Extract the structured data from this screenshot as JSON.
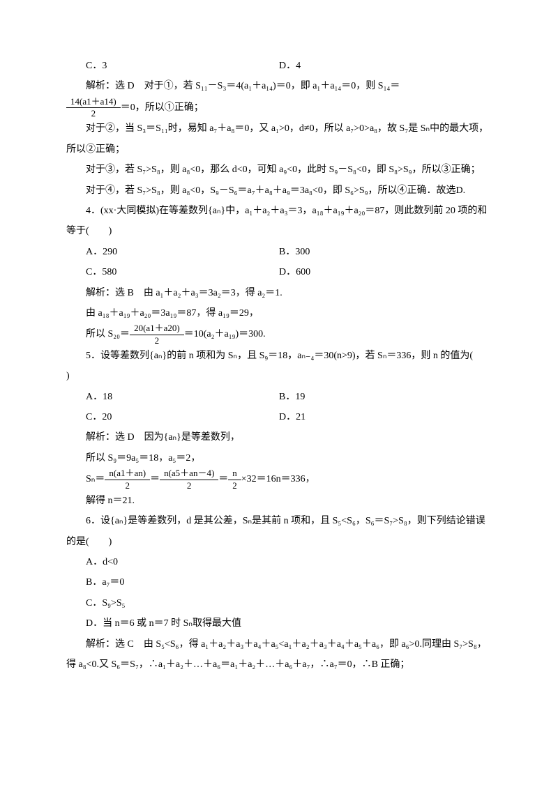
{
  "colors": {
    "text": "#000000",
    "bg": "#ffffff"
  },
  "font": {
    "family": "SimSun",
    "size_pt": 10.5,
    "line_height": 2.1
  },
  "lines": {
    "optC1": "C．3",
    "optD1": "D．4",
    "exp1a": "解析：选 D　对于①，若 S₁₁－S₃＝4(a₁＋a₁₄)＝0，即 a₁＋a₁₄＝0，则 S₁₄＝",
    "frac1_num": "14(a1＋a14)",
    "frac1_den": "2",
    "exp1b": "＝0，所以①正确；",
    "exp2": "对于②，当 S₃＝S₁₁时，易知 a₇＋a₈＝0，又 a₁>0，d≠0，所以 a₇>0>a₈，故 S₇是 Sₙ中的最大项，所以②正确；",
    "exp3": "对于③，若 S₇>S₈，则 a₈<0，那么 d<0，可知 a₉<0，此时 S₉－S₈<0，即 S₈>S₉，所以③正确；",
    "exp4": "对于④，若 S₇>S₈，则 a₈<0，S₉－S₆＝a₇＋a₈＋a₉＝3a₈<0，即 S₆>S₉，所以④正确．故选D.",
    "q4": "4．(xx·大同模拟)在等差数列{aₙ}中，a₁＋a₂＋a₃＝3，a₁₈＋a₁₉＋a₂₀＝87，则此数列前 20 项的和等于(　　)",
    "q4A": "A．290",
    "q4B": "B．300",
    "q4C": "C．580",
    "q4D": "D．600",
    "q4exp1": "解析：选 B　由 a₁＋a₂＋a₃＝3a₂＝3，得 a₂＝1.",
    "q4exp2": "由 a₁₈＋a₁₉＋a₂₀＝3a₁₉＝87，得 a₁₉＝29，",
    "q4exp3a": "所以 S₂₀＝",
    "q4frac_num": "20(a1＋a20)",
    "q4frac_den": "2",
    "q4exp3b": "＝10(a₂＋a₁₉)＝300.",
    "q5": "5．设等差数列{aₙ}的前 n 项和为 Sₙ，且 S₉＝18，aₙ₋₄＝30(n>9)，若 Sₙ＝336，则 n 的值为(　　)",
    "q5A": "A．18",
    "q5B": "B．19",
    "q5C": "C．20",
    "q5D": "D．21",
    "q5exp1": "解析：选 D　因为{aₙ}是等差数列，",
    "q5exp2": "所以 S₉＝9a₅＝18，a₅＝2，",
    "q5exp3a": "Sₙ＝",
    "q5f1n": "n(a1＋an)",
    "q5f1d": "2",
    "q5eq1": "＝",
    "q5f2n": "n(a5＋an－4)",
    "q5f2d": "2",
    "q5eq2": "＝",
    "q5f3n": "n",
    "q5f3d": "2",
    "q5exp3b": "×32＝16n＝336，",
    "q5exp4": "解得 n＝21.",
    "q6": "6．设{aₙ}是等差数列，d 是其公差，Sₙ是其前 n 项和，且 S₅<S₆，S₆＝S₇>S₈，则下列结论错误的是(　　)",
    "q6A": "A．d<0",
    "q6B": "B．a₇＝0",
    "q6C": "C．S₉>S₅",
    "q6D": "D．当 n＝6 或 n＝7 时 Sₙ取得最大值",
    "q6exp": "解析：选 C　由 S₅<S₆，得 a₁＋a₂＋a₃＋a₄＋a₅<a₁＋a₂＋a₃＋a₄＋a₅＋a₆，即 a₆>0.同理由 S₇>S₈，得 a₈<0.又 S₆＝S₇，∴a₁＋a₂＋…＋a₆＝a₁＋a₂＋…＋a₆＋a₇，∴a₇＝0，∴B 正确；"
  }
}
